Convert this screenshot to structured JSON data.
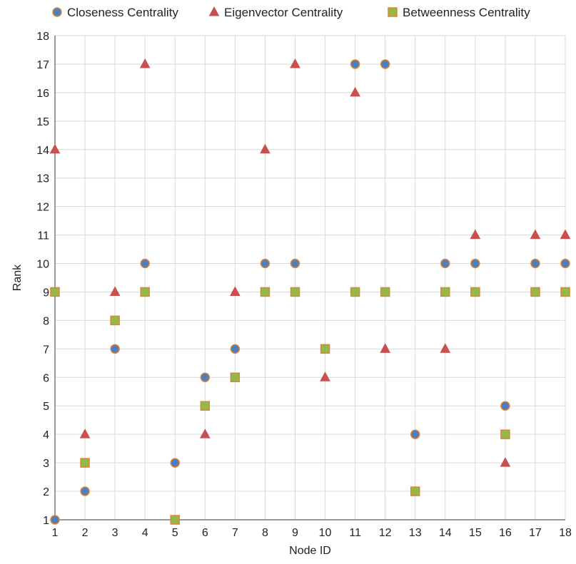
{
  "chart_data": {
    "type": "scatter",
    "title": "",
    "xlabel": "Node ID",
    "ylabel": "Rank",
    "xlim": [
      1,
      18
    ],
    "ylim": [
      1,
      18
    ],
    "x_ticks": [
      1,
      2,
      3,
      4,
      5,
      6,
      7,
      8,
      9,
      10,
      11,
      12,
      13,
      14,
      15,
      16,
      17,
      18
    ],
    "y_ticks": [
      1,
      2,
      3,
      4,
      5,
      6,
      7,
      8,
      9,
      10,
      11,
      12,
      13,
      14,
      15,
      16,
      17,
      18
    ],
    "grid": true,
    "legend_position": "top",
    "x": [
      1,
      2,
      3,
      4,
      5,
      6,
      7,
      8,
      9,
      10,
      11,
      12,
      13,
      14,
      15,
      16,
      17,
      18
    ],
    "series": [
      {
        "name": "Closeness Centrality",
        "marker": "circle",
        "fill": "#4a7fc1",
        "stroke": "#e8822a",
        "values": [
          1,
          2,
          7,
          10,
          3,
          6,
          7,
          10,
          10,
          null,
          17,
          17,
          4,
          10,
          10,
          5,
          10,
          10
        ]
      },
      {
        "name": "Eigenvector Centrality",
        "marker": "triangle",
        "fill": "#c9504f",
        "stroke": "#c9504f",
        "values": [
          14,
          4,
          9,
          17,
          null,
          4,
          9,
          14,
          17,
          6,
          16,
          7,
          null,
          7,
          11,
          3,
          11,
          11
        ]
      },
      {
        "name": "Betweenness Centrality",
        "marker": "square",
        "fill": "#94b84a",
        "stroke": "#e8822a",
        "values": [
          9,
          3,
          8,
          9,
          1,
          5,
          6,
          9,
          9,
          7,
          9,
          9,
          2,
          9,
          9,
          4,
          9,
          9
        ]
      }
    ]
  }
}
